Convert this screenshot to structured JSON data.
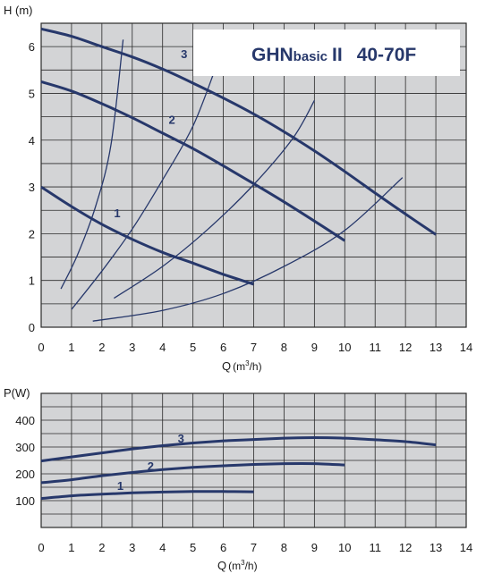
{
  "colors": {
    "panel_bg": "#d3d4d6",
    "grid": "#2a2a2a",
    "curve": "#27386b",
    "title_bg": "#ffffff"
  },
  "chart_data": [
    {
      "type": "line",
      "name": "head-chart",
      "title_parts": [
        "GHN",
        "basic",
        "II",
        "40-70F"
      ],
      "xlabel": "Q",
      "xlabel_unit": "(m3/h)",
      "ylabel": "H (m)",
      "xlim": [
        0,
        14
      ],
      "ylim": [
        0,
        6.5
      ],
      "x_ticks": [
        0,
        1,
        2,
        3,
        4,
        5,
        6,
        7,
        8,
        9,
        10,
        11,
        12,
        13,
        14
      ],
      "y_ticks": [
        0,
        1,
        2,
        3,
        4,
        5,
        6
      ],
      "grid": true,
      "series": [
        {
          "name": "1",
          "points": [
            [
              0,
              3.0
            ],
            [
              1,
              2.58
            ],
            [
              2,
              2.2
            ],
            [
              3,
              1.88
            ],
            [
              4,
              1.6
            ],
            [
              5,
              1.37
            ],
            [
              6,
              1.13
            ],
            [
              7,
              0.92
            ]
          ],
          "label_at": [
            2.4,
            2.35
          ]
        },
        {
          "name": "2",
          "points": [
            [
              0,
              5.25
            ],
            [
              1,
              5.05
            ],
            [
              2,
              4.78
            ],
            [
              3,
              4.48
            ],
            [
              4,
              4.15
            ],
            [
              5,
              3.82
            ],
            [
              6,
              3.45
            ],
            [
              7,
              3.07
            ],
            [
              8,
              2.68
            ],
            [
              9,
              2.27
            ],
            [
              10,
              1.85
            ]
          ],
          "label_at": [
            4.2,
            4.35
          ]
        },
        {
          "name": "3",
          "points": [
            [
              0,
              6.38
            ],
            [
              1,
              6.22
            ],
            [
              2,
              6.0
            ],
            [
              3,
              5.78
            ],
            [
              4,
              5.52
            ],
            [
              5,
              5.22
            ],
            [
              6,
              4.9
            ],
            [
              7,
              4.56
            ],
            [
              8,
              4.18
            ],
            [
              9,
              3.77
            ],
            [
              10,
              3.33
            ],
            [
              11,
              2.87
            ],
            [
              12,
              2.42
            ],
            [
              13,
              1.98
            ]
          ],
          "label_at": [
            4.6,
            5.75
          ]
        }
      ],
      "system_curves": [
        {
          "points": [
            [
              0.65,
              0.82
            ],
            [
              1.2,
              1.55
            ],
            [
              1.8,
              2.6
            ],
            [
              2.3,
              3.9
            ],
            [
              2.7,
              6.15
            ]
          ]
        },
        {
          "points": [
            [
              1.0,
              0.38
            ],
            [
              2.0,
              1.2
            ],
            [
              3.0,
              2.1
            ],
            [
              4.0,
              3.15
            ],
            [
              5.0,
              4.3
            ],
            [
              5.75,
              5.55
            ]
          ]
        },
        {
          "points": [
            [
              2.4,
              0.62
            ],
            [
              4.0,
              1.3
            ],
            [
              5.5,
              2.1
            ],
            [
              7.0,
              3.05
            ],
            [
              8.3,
              4.05
            ],
            [
              9.0,
              4.85
            ]
          ]
        },
        {
          "points": [
            [
              1.7,
              0.13
            ],
            [
              4.0,
              0.36
            ],
            [
              6.0,
              0.72
            ],
            [
              8.0,
              1.3
            ],
            [
              10.0,
              2.07
            ],
            [
              11.9,
              3.2
            ]
          ]
        }
      ]
    },
    {
      "type": "line",
      "name": "power-chart",
      "xlabel": "Q",
      "xlabel_unit": "(m3/h)",
      "ylabel": "P(W)",
      "xlim": [
        0,
        14
      ],
      "ylim": [
        0,
        500
      ],
      "x_ticks": [
        0,
        1,
        2,
        3,
        4,
        5,
        6,
        7,
        8,
        9,
        10,
        11,
        12,
        13,
        14
      ],
      "y_ticks": [
        100,
        200,
        300,
        400
      ],
      "grid": true,
      "series": [
        {
          "name": "1",
          "points": [
            [
              0,
              108
            ],
            [
              1,
              118
            ],
            [
              2,
              124
            ],
            [
              3,
              129
            ],
            [
              4,
              132
            ],
            [
              5,
              134
            ],
            [
              6,
              134
            ],
            [
              7,
              133
            ]
          ],
          "label_at": [
            2.5,
            140
          ]
        },
        {
          "name": "2",
          "points": [
            [
              0,
              167
            ],
            [
              1,
              178
            ],
            [
              2,
              193
            ],
            [
              3,
              205
            ],
            [
              4,
              216
            ],
            [
              5,
              224
            ],
            [
              6,
              230
            ],
            [
              7,
              235
            ],
            [
              8,
              238
            ],
            [
              9,
              238
            ],
            [
              10,
              233
            ]
          ],
          "label_at": [
            3.5,
            213
          ]
        },
        {
          "name": "3",
          "points": [
            [
              0,
              248
            ],
            [
              1,
              263
            ],
            [
              2,
              278
            ],
            [
              3,
              293
            ],
            [
              4,
              305
            ],
            [
              5,
              315
            ],
            [
              6,
              323
            ],
            [
              7,
              328
            ],
            [
              8,
              333
            ],
            [
              9,
              335
            ],
            [
              10,
              333
            ],
            [
              11,
              327
            ],
            [
              12,
              320
            ],
            [
              13,
              308
            ]
          ],
          "label_at": [
            4.5,
            316
          ]
        }
      ]
    }
  ]
}
